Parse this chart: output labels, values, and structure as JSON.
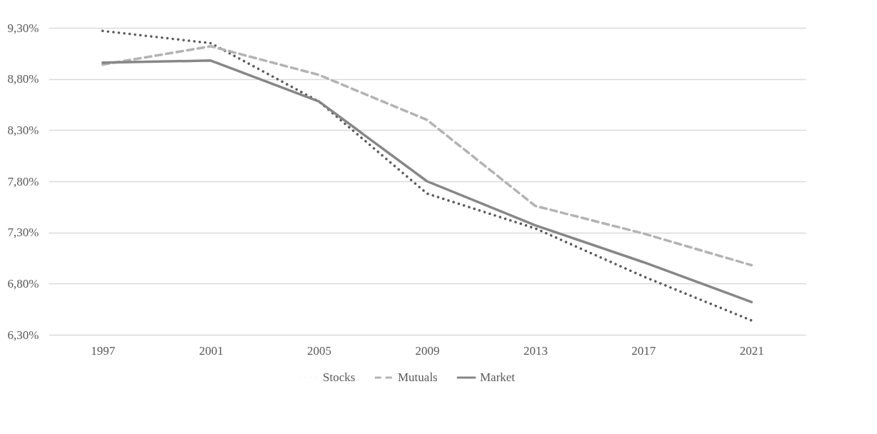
{
  "chart_data": {
    "type": "line",
    "categories": [
      "1997",
      "2001",
      "2005",
      "2009",
      "2013",
      "2017",
      "2021"
    ],
    "series": [
      {
        "name": "Stocks",
        "color": "#595959",
        "line_style": "dotted",
        "values": [
          9.27,
          9.15,
          8.58,
          7.68,
          7.34,
          6.87,
          6.44
        ]
      },
      {
        "name": "Mutuals",
        "color": "#b3b3b3",
        "line_style": "dashed",
        "values": [
          8.94,
          9.12,
          8.84,
          8.4,
          7.56,
          7.29,
          6.98
        ]
      },
      {
        "name": "Market",
        "color": "#878787",
        "line_style": "solid",
        "values": [
          8.96,
          8.98,
          8.58,
          7.8,
          7.37,
          7.01,
          6.62
        ]
      }
    ],
    "ylim": [
      6.3,
      9.3
    ],
    "yticks": [
      {
        "value": 6.3,
        "label": "6,30%"
      },
      {
        "value": 6.8,
        "label": "6,80%"
      },
      {
        "value": 7.3,
        "label": "7,30%"
      },
      {
        "value": 7.8,
        "label": "7,80%"
      },
      {
        "value": 8.3,
        "label": "8,30%"
      },
      {
        "value": 8.8,
        "label": "8,80%"
      },
      {
        "value": 9.3,
        "label": "9,30%"
      }
    ],
    "grid": "y",
    "legend": "bottom",
    "marker": "none"
  }
}
